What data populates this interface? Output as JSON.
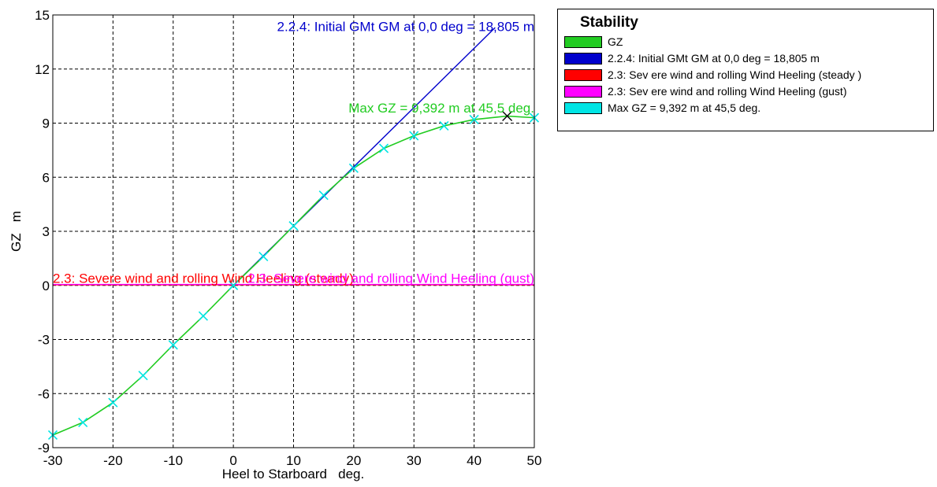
{
  "chart_data": {
    "type": "line",
    "title": "",
    "xlabel": "Heel to Starboard   deg.",
    "ylabel": "GZ   m",
    "xlim": [
      -30,
      50
    ],
    "ylim": [
      -9,
      15
    ],
    "xticks": [
      -30,
      -20,
      -10,
      0,
      10,
      20,
      30,
      40,
      50
    ],
    "yticks": [
      -9,
      -6,
      -3,
      0,
      3,
      6,
      9,
      12,
      15
    ],
    "grid": true,
    "legend_position": "right",
    "legend_title": "Stability",
    "series": [
      {
        "name": "GZ",
        "color": "#22cc22",
        "marker_color": "#00e5e5",
        "x": [
          -30,
          -25,
          -20,
          -15,
          -10,
          -5,
          0,
          5,
          10,
          15,
          20,
          25,
          30,
          35,
          40,
          45.5,
          50
        ],
        "y": [
          -8.3,
          -7.6,
          -6.5,
          -5.0,
          -3.3,
          -1.7,
          0,
          1.6,
          3.3,
          5.0,
          6.5,
          7.6,
          8.3,
          8.85,
          9.2,
          9.392,
          9.3
        ],
        "marker_x": [
          -30,
          -25,
          -20,
          -15,
          -10,
          -5,
          0,
          5,
          10,
          15,
          20,
          25,
          30,
          35,
          40,
          50
        ]
      },
      {
        "name": "2.2.4: Initial GMt GM at 0,0 deg = 18,805 m",
        "color": "#0000cc",
        "x": [
          0,
          43.5
        ],
        "y": [
          0,
          14.3
        ]
      },
      {
        "name": "2.3: Sev ere wind and rolling Wind Heeling (steady )",
        "color": "#ff0000",
        "x": [
          -30,
          50
        ],
        "y": [
          0.03,
          0.03
        ]
      },
      {
        "name": "2.3: Sev ere wind and rolling Wind Heeling (gust)",
        "color": "#ff00ff",
        "x": [
          -30,
          50
        ],
        "y": [
          0.05,
          0.05
        ]
      },
      {
        "name": "Max GZ = 9,392 m at 45,5 deg.",
        "color": "#00e5e5",
        "x": [
          45.5
        ],
        "y": [
          9.392
        ]
      }
    ],
    "annotations": [
      {
        "text": "2.2.4: Initial GMt GM at 0,0 deg = 18,805 m",
        "color": "#0000cc",
        "x": 50,
        "y": 14.1,
        "anchor": "end"
      },
      {
        "text": "Max GZ = 9,392 m at 45,5 deg.",
        "color": "#22cc22",
        "x": 50,
        "y": 9.6,
        "anchor": "end"
      },
      {
        "text": "2.3: Severe wind and rolling Wind Heeling (steady)",
        "color": "#ff0000",
        "x": -30,
        "y": 0.15,
        "anchor": "start"
      },
      {
        "text": "2.3: Severe wind and rolling Wind Heeling (gust)",
        "color": "#ff00ff",
        "x": 50,
        "y": 0.15,
        "anchor": "end"
      }
    ],
    "max_marker": {
      "x": 45.5,
      "y": 9.392,
      "color": "#000000"
    }
  }
}
